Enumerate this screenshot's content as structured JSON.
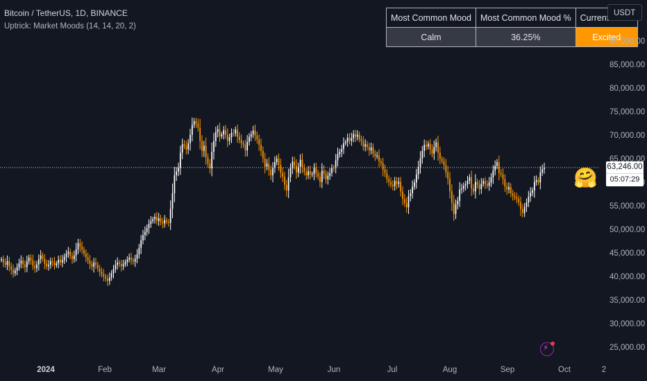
{
  "header": {
    "symbol": "Bitcoin / TetherUS, 1D, BINANCE",
    "indicator": "Uptrick: Market Moods (14, 14, 20, 2)"
  },
  "table": {
    "headers": [
      "Most Common Mood",
      "Most Common Mood %",
      "Current Mood"
    ],
    "values": [
      "Calm",
      "36.25%",
      "Excited"
    ]
  },
  "currency": "USDT",
  "mood_icon": "hugging-face-icon",
  "price_label": {
    "price": "63,246.00",
    "countdown": "05:07:29"
  },
  "colors": {
    "background": "#131722",
    "up_candle": "#ffffff",
    "down_candle": "#ff9800",
    "highlight": "#ff9800"
  },
  "chart_data": {
    "type": "candlestick",
    "y_ticks": [
      "90,000.00",
      "85,000.00",
      "80,000.00",
      "75,000.00",
      "70,000.00",
      "65,000.00",
      "60,000.00",
      "55,000.00",
      "50,000.00",
      "45,000.00",
      "40,000.00",
      "35,000.00",
      "30,000.00",
      "25,000.00"
    ],
    "x_ticks": [
      "2024",
      "Feb",
      "Mar",
      "Apr",
      "May",
      "Jun",
      "Jul",
      "Aug",
      "Sep",
      "Oct",
      "2"
    ],
    "ylim": [
      22000,
      94000
    ],
    "last_price": 63246,
    "closes": [
      43800,
      43100,
      42600,
      43400,
      42200,
      41600,
      40800,
      41400,
      42100,
      42900,
      43500,
      42700,
      42100,
      43300,
      44100,
      43600,
      42400,
      41900,
      42700,
      43800,
      44600,
      43900,
      42800,
      42300,
      42600,
      43400,
      43200,
      42500,
      42900,
      43700,
      43100,
      43600,
      44300,
      44900,
      45400,
      44500,
      43800,
      44600,
      45900,
      47200,
      46500,
      45800,
      45000,
      44200,
      43500,
      42800,
      42200,
      43100,
      42600,
      41800,
      41100,
      40600,
      40100,
      39700,
      39200,
      39900,
      40800,
      41700,
      42600,
      43100,
      42800,
      42300,
      42700,
      43200,
      43700,
      44100,
      43600,
      43300,
      43900,
      44800,
      46200,
      47800,
      48900,
      49600,
      50400,
      51300,
      51900,
      52300,
      52800,
      51900,
      52500,
      51800,
      51400,
      52100,
      51700,
      51500,
      54500,
      57800,
      61600,
      62400,
      63200,
      66400,
      68200,
      67800,
      67100,
      68400,
      70200,
      72300,
      73100,
      72600,
      71700,
      68900,
      66800,
      67900,
      65400,
      64100,
      63100,
      66600,
      68900,
      70800,
      71400,
      69900,
      70300,
      71200,
      70200,
      68900,
      69700,
      70600,
      70500,
      71300,
      69800,
      69100,
      68400,
      68100,
      66900,
      68700,
      69800,
      70300,
      71100,
      70100,
      69200,
      68100,
      66800,
      65200,
      63400,
      64100,
      62800,
      61600,
      63200,
      64400,
      65200,
      63800,
      62100,
      61300,
      59600,
      58400,
      61200,
      63100,
      64500,
      63600,
      62200,
      63400,
      64900,
      63300,
      62300,
      61600,
      62500,
      61800,
      61900,
      63100,
      62100,
      61300,
      60200,
      62600,
      61900,
      60800,
      61500,
      62100,
      63200,
      63100,
      64800,
      66100,
      66600,
      67200,
      68400,
      68700,
      69600,
      68900,
      69500,
      70400,
      69800,
      70200,
      69300,
      68800,
      67700,
      68200,
      67600,
      66900,
      67500,
      66200,
      65600,
      65800,
      64600,
      64200,
      62800,
      62100,
      60800,
      60200,
      59600,
      59300,
      60400,
      59800,
      60200,
      58200,
      56600,
      55700,
      54800,
      57200,
      57800,
      59200,
      60100,
      61800,
      63400,
      65200,
      66800,
      68100,
      67700,
      68300,
      67100,
      66200,
      67600,
      68600,
      66400,
      65100,
      64600,
      63800,
      62200,
      60900,
      58200,
      55800,
      53400,
      55400,
      56200,
      58600,
      58800,
      59400,
      59700,
      60400,
      61200,
      58800,
      58200,
      60200,
      59600,
      58700,
      59800,
      60400,
      59700,
      59400,
      60100,
      61200,
      62600,
      63600,
      64400,
      62100,
      61800,
      60800,
      59200,
      58600,
      59100,
      57800,
      57200,
      56900,
      56600,
      55900,
      54400,
      53600,
      54900,
      55800,
      57100,
      57900,
      58400,
      60200,
      60600,
      60100,
      62200,
      62900,
      63246
    ]
  }
}
